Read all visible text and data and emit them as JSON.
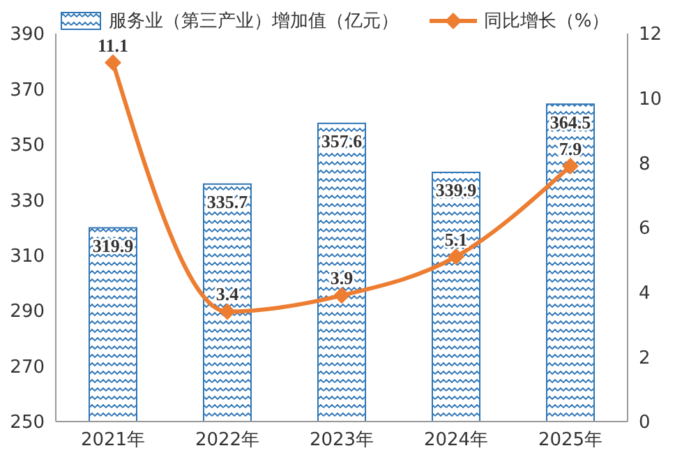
{
  "chart_data": {
    "type": "bar",
    "categories": [
      "2021年",
      "2022年",
      "2023年",
      "2024年",
      "2025年"
    ],
    "series": [
      {
        "name": "服务业（第三产业）增加值（亿元）",
        "color": "#2e75b6",
        "values": [
          319.9,
          335.7,
          357.6,
          339.9,
          364.5
        ]
      },
      {
        "name": "同比增长（%）",
        "type": "line",
        "axis": "y2",
        "color": "#ed7d31",
        "values": [
          11.1,
          3.4,
          3.9,
          5.1,
          7.9
        ]
      }
    ],
    "ylim": [
      250,
      390
    ],
    "yticks": [
      250,
      270,
      290,
      310,
      330,
      350,
      370,
      390
    ],
    "y2lim": [
      0,
      12
    ],
    "y2ticks": [
      0,
      2,
      4,
      6,
      8,
      10,
      12
    ],
    "data_labels": true,
    "legend": "top",
    "grid": false,
    "marker": "diamond",
    "line_style": "solid"
  }
}
